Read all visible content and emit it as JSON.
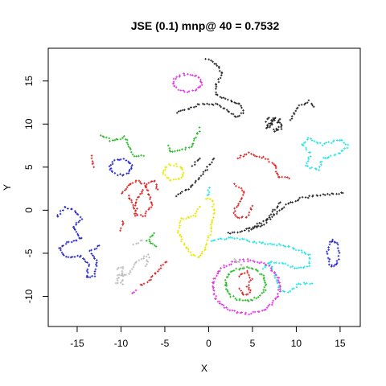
{
  "chart_data": {
    "type": "scatter",
    "title": "JSE (0.1) mnp@ 40 = 0.7532",
    "xlabel": "X",
    "ylabel": "Y",
    "xlim": [
      -18.3,
      17.3
    ],
    "ylim": [
      -13.5,
      18.8
    ],
    "x_ticks": [
      -15,
      -10,
      -5,
      0,
      5,
      10,
      15
    ],
    "y_ticks": [
      -10,
      -5,
      0,
      5,
      10,
      15
    ],
    "x_tick_labels": [
      "-15",
      "-10",
      "-5",
      "0",
      "5",
      "10",
      "15"
    ],
    "y_tick_labels": [
      "-10",
      "-5",
      "0",
      "5",
      "10",
      "15"
    ],
    "marker": "+",
    "colors": {
      "black": "#222222",
      "red": "#dd2222",
      "green": "#22bb22",
      "blue": "#2222cc",
      "cyan": "#22e5e5",
      "magenta": "#e233e2",
      "yellow": "#e8e800",
      "gray": "#bbbbbb"
    },
    "clusters": [
      {
        "color": "magenta",
        "shape": "ring",
        "cx": -2.4,
        "cy": 14.8,
        "rx": 1.6,
        "ry": 1.0
      },
      {
        "color": "black",
        "shape": "path",
        "pts": [
          [
            -0.3,
            17.5
          ],
          [
            0.9,
            17.0
          ],
          [
            1.6,
            15.8
          ],
          [
            0.8,
            14.5
          ],
          [
            1.0,
            13.3
          ],
          [
            2.5,
            12.8
          ],
          [
            3.6,
            12.3
          ],
          [
            4.0,
            11.3
          ],
          [
            3.2,
            10.8
          ],
          [
            2.0,
            11.6
          ],
          [
            0.8,
            12.3
          ],
          [
            -1.0,
            12.3
          ],
          [
            -3.6,
            11.3
          ]
        ]
      },
      {
        "color": "black",
        "shape": "path",
        "pts": [
          [
            9.3,
            10.5
          ],
          [
            10.2,
            12.0
          ],
          [
            11.5,
            12.7
          ],
          [
            12.0,
            12.0
          ]
        ]
      },
      {
        "color": "black",
        "shape": "blob",
        "cx": 7.5,
        "cy": 10.0,
        "rx": 1.1,
        "ry": 0.9
      },
      {
        "color": "green",
        "shape": "path",
        "pts": [
          [
            -12.3,
            8.8
          ],
          [
            -11.0,
            8.0
          ],
          [
            -9.6,
            8.5
          ],
          [
            -9.2,
            7.9
          ],
          [
            -8.9,
            7.0
          ],
          [
            -8.4,
            6.3
          ],
          [
            -7.4,
            6.3
          ]
        ]
      },
      {
        "color": "blue",
        "shape": "ring",
        "cx": -10.0,
        "cy": 5.0,
        "rx": 1.2,
        "ry": 0.9
      },
      {
        "color": "red",
        "shape": "path",
        "pts": [
          [
            -13.3,
            6.3
          ],
          [
            -13.1,
            5.0
          ]
        ]
      },
      {
        "color": "yellow",
        "shape": "ring",
        "cx": -4.0,
        "cy": 4.4,
        "rx": 1.1,
        "ry": 0.9
      },
      {
        "color": "green",
        "shape": "path",
        "pts": [
          [
            -1.0,
            9.5
          ],
          [
            -1.5,
            8.5
          ],
          [
            -2.0,
            7.3
          ],
          [
            -4.3,
            6.8
          ],
          [
            -4.6,
            7.5
          ]
        ]
      },
      {
        "color": "black",
        "shape": "path",
        "pts": [
          [
            -3.6,
            1.7
          ],
          [
            -2.3,
            2.5
          ],
          [
            -1.2,
            3.5
          ],
          [
            -0.1,
            5.0
          ],
          [
            0.6,
            6.0
          ]
        ]
      },
      {
        "color": "black",
        "shape": "path",
        "pts": [
          [
            -1.8,
            5.2
          ],
          [
            -1.0,
            6.0
          ]
        ]
      },
      {
        "color": "red",
        "shape": "path",
        "pts": [
          [
            3.3,
            6.1
          ],
          [
            4.6,
            6.6
          ],
          [
            6.3,
            6.1
          ],
          [
            7.6,
            5.3
          ],
          [
            7.9,
            3.8
          ],
          [
            9.2,
            3.7
          ]
        ]
      },
      {
        "color": "red",
        "shape": "path",
        "pts": [
          [
            3.0,
            3.0
          ],
          [
            4.1,
            2.2
          ],
          [
            3.4,
            0.8
          ],
          [
            2.8,
            -0.3
          ],
          [
            3.5,
            -1.0
          ],
          [
            4.4,
            -0.7
          ],
          [
            5.0,
            0.5
          ]
        ]
      },
      {
        "color": "cyan",
        "shape": "path",
        "pts": [
          [
            10.7,
            7.6
          ],
          [
            11.4,
            8.4
          ],
          [
            13.0,
            7.6
          ],
          [
            15.1,
            8.2
          ],
          [
            15.9,
            7.5
          ],
          [
            14.8,
            6.5
          ],
          [
            13.0,
            6.0
          ],
          [
            12.6,
            4.7
          ],
          [
            11.1,
            5.1
          ],
          [
            11.6,
            6.6
          ],
          [
            10.7,
            7.6
          ]
        ]
      },
      {
        "color": "black",
        "shape": "path",
        "pts": [
          [
            2.3,
            -2.7
          ],
          [
            4.5,
            -2.2
          ],
          [
            7.0,
            -1.0
          ],
          [
            8.8,
            0.6
          ],
          [
            10.5,
            1.4
          ],
          [
            13.0,
            1.8
          ],
          [
            15.3,
            2.0
          ]
        ]
      },
      {
        "color": "black",
        "shape": "path",
        "pts": [
          [
            8.2,
            0.9
          ],
          [
            7.1,
            -0.4
          ],
          [
            6.4,
            -1.6
          ],
          [
            4.6,
            -2.4
          ]
        ]
      },
      {
        "color": "red",
        "shape": "path",
        "pts": [
          [
            -10.0,
            2.0
          ],
          [
            -9.0,
            3.0
          ],
          [
            -8.2,
            3.5
          ],
          [
            -7.2,
            2.9
          ],
          [
            -6.8,
            1.7
          ],
          [
            -6.5,
            0.6
          ],
          [
            -7.3,
            -0.6
          ],
          [
            -8.3,
            -0.6
          ],
          [
            -8.7,
            0.6
          ],
          [
            -9.1,
            1.7
          ]
        ]
      },
      {
        "color": "red",
        "shape": "path",
        "pts": [
          [
            -8.2,
            -0.6
          ],
          [
            -8.3,
            1.0
          ],
          [
            -7.6,
            2.0
          ],
          [
            -7.2,
            2.9
          ],
          [
            -6.2,
            3.5
          ],
          [
            -5.8,
            2.4
          ]
        ]
      },
      {
        "color": "red",
        "shape": "path",
        "pts": [
          [
            -10.0,
            -2.3
          ],
          [
            -9.8,
            -1.3
          ]
        ]
      },
      {
        "color": "blue",
        "shape": "path",
        "pts": [
          [
            -17.3,
            -0.8
          ],
          [
            -16.5,
            0.3
          ],
          [
            -15.5,
            0.2
          ],
          [
            -14.5,
            -1.0
          ],
          [
            -15.5,
            -2.0
          ],
          [
            -14.5,
            -3.3
          ],
          [
            -16.2,
            -3.7
          ],
          [
            -17.0,
            -4.5
          ],
          [
            -16.3,
            -5.4
          ],
          [
            -14.5,
            -5.4
          ],
          [
            -13.6,
            -6.3
          ],
          [
            -14.0,
            -7.8
          ],
          [
            -13.0,
            -7.6
          ],
          [
            -12.8,
            -5.8
          ],
          [
            -13.5,
            -4.8
          ],
          [
            -12.5,
            -4.1
          ]
        ]
      },
      {
        "color": "gray",
        "shape": "path",
        "pts": [
          [
            -10.5,
            -6.8
          ],
          [
            -9.8,
            -6.5
          ],
          [
            -9.8,
            -8.5
          ],
          [
            -10.5,
            -8.5
          ],
          [
            -10.2,
            -7.5
          ]
        ]
      },
      {
        "color": "gray",
        "shape": "path",
        "pts": [
          [
            -10.3,
            -7.6
          ],
          [
            -9.8,
            -7.6
          ],
          [
            -9.0,
            -7.2
          ],
          [
            -8.2,
            -5.9
          ],
          [
            -7.5,
            -5.5
          ],
          [
            -6.8,
            -5.2
          ],
          [
            -7.2,
            -6.5
          ]
        ]
      },
      {
        "color": "gray",
        "shape": "path",
        "pts": [
          [
            -8.6,
            -4.0
          ],
          [
            -7.6,
            -3.5
          ]
        ]
      },
      {
        "color": "green",
        "shape": "path",
        "pts": [
          [
            -6.2,
            -2.6
          ],
          [
            -7.0,
            -3.6
          ],
          [
            -6.0,
            -4.2
          ]
        ]
      },
      {
        "color": "red",
        "shape": "path",
        "pts": [
          [
            -7.8,
            -8.7
          ],
          [
            -6.8,
            -8.2
          ],
          [
            -5.2,
            -6.3
          ],
          [
            -4.8,
            -6.0
          ]
        ]
      },
      {
        "color": "yellow",
        "shape": "path",
        "pts": [
          [
            -1.0,
            0.5
          ],
          [
            -1.5,
            -0.6
          ],
          [
            -3.1,
            -1.0
          ],
          [
            -3.5,
            -2.3
          ],
          [
            -3.0,
            -3.6
          ],
          [
            -2.0,
            -5.2
          ],
          [
            -1.0,
            -5.5
          ],
          [
            -0.3,
            -4.3
          ],
          [
            0.2,
            -2.5
          ],
          [
            0.6,
            -0.3
          ],
          [
            0.5,
            1.2
          ],
          [
            -0.3,
            1.3
          ]
        ]
      },
      {
        "color": "cyan",
        "shape": "path",
        "pts": [
          [
            0.3,
            -3.5
          ],
          [
            2.5,
            -3.2
          ],
          [
            5.5,
            -3.7
          ],
          [
            8.5,
            -4.1
          ],
          [
            10.3,
            -4.6
          ],
          [
            11.6,
            -5.2
          ],
          [
            11.5,
            -6.5
          ],
          [
            10.0,
            -6.8
          ],
          [
            8.6,
            -6.2
          ],
          [
            7.0,
            -6.0
          ],
          [
            6.2,
            -6.8
          ]
        ]
      },
      {
        "color": "cyan",
        "shape": "path",
        "pts": [
          [
            7.0,
            -6.0
          ],
          [
            7.6,
            -7.6
          ],
          [
            8.2,
            -9.3
          ],
          [
            9.2,
            -9.5
          ],
          [
            10.3,
            -8.5
          ],
          [
            11.8,
            -8.5
          ]
        ]
      },
      {
        "color": "cyan",
        "shape": "path",
        "pts": [
          [
            -0.1,
            1.7
          ],
          [
            0.1,
            2.6
          ]
        ]
      },
      {
        "color": "blue",
        "shape": "ring",
        "cx": 14.2,
        "cy": -5.0,
        "rx": 0.6,
        "ry": 1.5
      },
      {
        "color": "magenta",
        "shape": "ring",
        "cx": 4.3,
        "cy": -8.9,
        "rx": 3.8,
        "ry": 3.1
      },
      {
        "color": "green",
        "shape": "ring",
        "cx": 4.2,
        "cy": -8.6,
        "rx": 2.3,
        "ry": 1.9
      },
      {
        "color": "red",
        "shape": "path",
        "pts": [
          [
            3.5,
            -7.6
          ],
          [
            4.3,
            -7.1
          ],
          [
            4.9,
            -8.0
          ],
          [
            4.4,
            -8.8
          ],
          [
            4.8,
            -9.6
          ],
          [
            4.0,
            -9.9
          ],
          [
            3.5,
            -9.1
          ]
        ]
      },
      {
        "color": "gray",
        "shape": "path",
        "pts": [
          [
            3.0,
            -5.6
          ],
          [
            4.0,
            -6.6
          ]
        ]
      },
      {
        "color": "magenta",
        "shape": "path",
        "pts": [
          [
            -8.8,
            -9.6
          ],
          [
            -8.3,
            -9.3
          ]
        ]
      }
    ]
  }
}
